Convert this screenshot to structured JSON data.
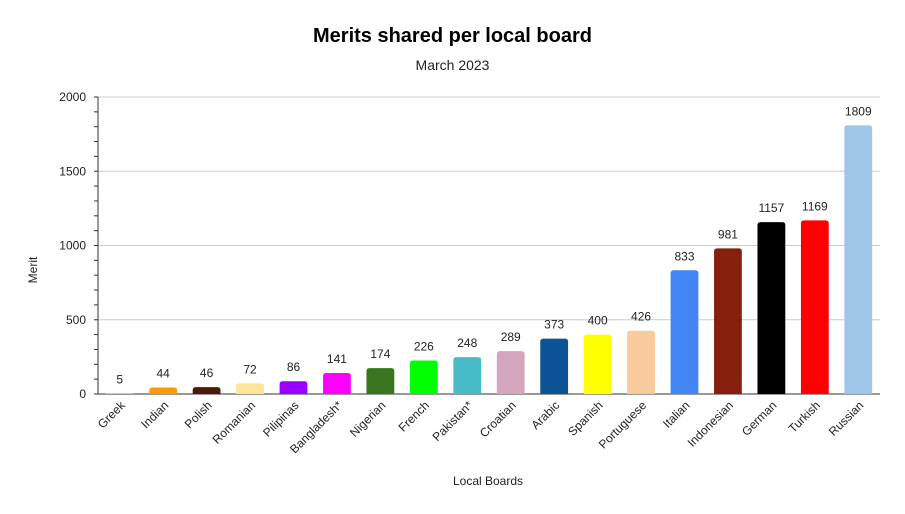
{
  "chart_data": {
    "type": "bar",
    "title": "Merits shared per local board",
    "subtitle": "March 2023",
    "xlabel": "Local Boards",
    "ylabel": "Merit",
    "ylim": [
      0,
      2000
    ],
    "yticks": [
      0,
      500,
      1000,
      1500,
      2000
    ],
    "grid": true,
    "legend": "none",
    "categories": [
      "Greek",
      "Indian",
      "Polish",
      "Romanian",
      "Pilipinas",
      "Bangladesh*",
      "Nigerian",
      "French",
      "Pakistan*",
      "Croatian",
      "Arabic",
      "Spanish",
      "Portuguese",
      "Italian",
      "Indonesian",
      "German",
      "Turkish",
      "Russian"
    ],
    "values": [
      5,
      44,
      46,
      72,
      86,
      141,
      174,
      226,
      248,
      289,
      373,
      400,
      426,
      833,
      981,
      1157,
      1169,
      1809
    ],
    "colors": [
      "#f4b400",
      "#ff9900",
      "#4d1a0a",
      "#ffe599",
      "#9900ff",
      "#ff00ff",
      "#38761d",
      "#00ff00",
      "#46bdc6",
      "#d5a6bd",
      "#0b5394",
      "#ffff00",
      "#f9cb9c",
      "#4285f4",
      "#85200c",
      "#000000",
      "#ff0000",
      "#9fc5e8"
    ]
  }
}
